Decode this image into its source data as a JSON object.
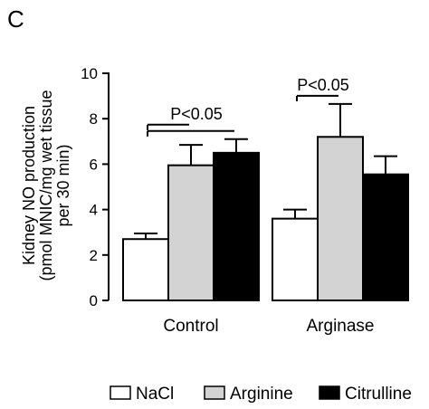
{
  "panel_label": "C",
  "chart_data": {
    "type": "bar",
    "categories": [
      "Control",
      "Arginase"
    ],
    "series": [
      {
        "name": "NaCl",
        "color": "#ffffff",
        "values": [
          2.7,
          3.6
        ],
        "errors": [
          0.25,
          0.4
        ]
      },
      {
        "name": "Arginine",
        "color": "#d3d3d3",
        "values": [
          5.95,
          7.2
        ],
        "errors": [
          0.9,
          1.45
        ]
      },
      {
        "name": "Citrulline",
        "color": "#000000",
        "values": [
          6.5,
          5.55
        ],
        "errors": [
          0.6,
          0.8
        ]
      }
    ],
    "ylabel_lines": [
      "Kidney NO production",
      "(pmol MNIC/mg wet tissue",
      "per 30 min)"
    ],
    "ylim": [
      0,
      10
    ],
    "yticks": [
      "0",
      "2",
      "4",
      "6",
      "8",
      "10"
    ],
    "yticks_values": [
      0,
      2,
      4,
      6,
      8,
      10
    ],
    "annotations": [
      {
        "text": "P<0.05",
        "category": "Control",
        "brackets": [
          [
            "NaCl",
            "Arginine"
          ],
          [
            "NaCl",
            "Citrulline"
          ]
        ]
      },
      {
        "text": "P<0.05",
        "category": "Arginase",
        "brackets": [
          [
            "NaCl",
            "Arginine"
          ]
        ]
      }
    ],
    "legend_position": "bottom-right"
  }
}
